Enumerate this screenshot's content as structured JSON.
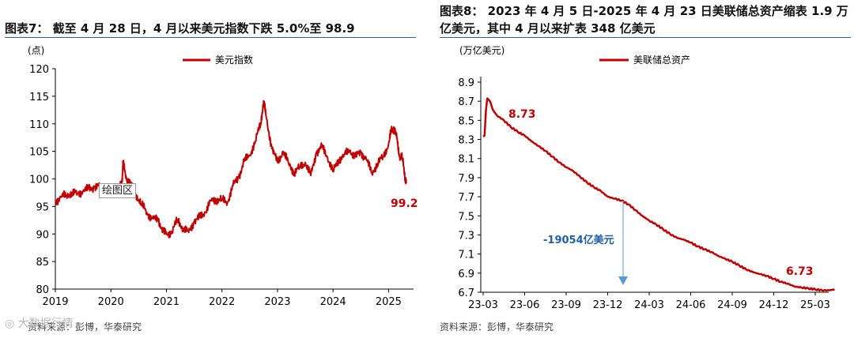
{
  "left_panel": {
    "title": "图表7： 截至 4 月 28 日，4 月以来美元指数下跌 5.0%至 98.9",
    "source": "资料来源：彭博，华泰研究",
    "tooltip": "绘图区",
    "watermark": "◎ 大数据行情"
  },
  "right_panel": {
    "title": "图表8： 2023 年 4 月 5 日-2025 年 4 月 23 日美联储总资产缩表 1.9 万亿美元，其中 4 月以来扩表 348 亿美元",
    "source": "资料来源：彭博，华泰研究"
  },
  "colors": {
    "series": "#c00000",
    "annotation": "#5b9bd5",
    "annotation_text": "#1f5fa8",
    "rule": "#2f5f8f"
  },
  "chart_data": [
    {
      "type": "line",
      "title": "美元指数",
      "ylabel": "(点)",
      "legend": "美元指数",
      "legend_position": "top-center",
      "x_ticks": [
        "2019",
        "2020",
        "2021",
        "2022",
        "2023",
        "2024",
        "2025"
      ],
      "y_ticks": [
        "120",
        "115",
        "110",
        "105",
        "100",
        "95",
        "90",
        "85",
        "80"
      ],
      "xlim": [
        2019.0,
        2025.45
      ],
      "ylim": [
        80,
        120
      ],
      "end_label": "99.2",
      "series": [
        {
          "name": "美元指数",
          "x": [
            2019.0,
            2019.1,
            2019.2,
            2019.3,
            2019.4,
            2019.5,
            2019.6,
            2019.7,
            2019.8,
            2019.9,
            2020.0,
            2020.1,
            2020.15,
            2020.2,
            2020.22,
            2020.28,
            2020.35,
            2020.45,
            2020.55,
            2020.65,
            2020.75,
            2020.85,
            2020.95,
            2021.0,
            2021.1,
            2021.2,
            2021.3,
            2021.4,
            2021.5,
            2021.6,
            2021.7,
            2021.8,
            2021.9,
            2022.0,
            2022.1,
            2022.2,
            2022.3,
            2022.4,
            2022.5,
            2022.6,
            2022.7,
            2022.75,
            2022.8,
            2022.9,
            2023.0,
            2023.1,
            2023.2,
            2023.3,
            2023.4,
            2023.5,
            2023.6,
            2023.7,
            2023.8,
            2023.9,
            2024.0,
            2024.1,
            2024.2,
            2024.3,
            2024.4,
            2024.5,
            2024.6,
            2024.7,
            2024.8,
            2024.9,
            2025.0,
            2025.05,
            2025.1,
            2025.15,
            2025.2,
            2025.25,
            2025.3,
            2025.32
          ],
          "values": [
            95.8,
            96.8,
            97.0,
            97.5,
            97.3,
            97.8,
            98.2,
            98.5,
            98.6,
            97.6,
            96.8,
            97.8,
            98.5,
            99.5,
            102.8,
            100.0,
            99.4,
            97.2,
            95.5,
            93.8,
            92.8,
            92.5,
            90.5,
            89.9,
            90.5,
            92.6,
            91.0,
            90.3,
            92.3,
            93.0,
            94.0,
            96.0,
            96.3,
            96.2,
            95.8,
            98.8,
            100.3,
            103.2,
            104.3,
            106.8,
            110.2,
            114.2,
            111.0,
            105.5,
            103.0,
            105.0,
            102.8,
            101.2,
            102.1,
            103.0,
            100.6,
            104.8,
            105.8,
            104.0,
            101.3,
            103.5,
            104.3,
            105.2,
            104.0,
            104.8,
            103.6,
            101.0,
            102.8,
            104.0,
            106.3,
            108.8,
            109.2,
            107.3,
            104.0,
            103.8,
            100.2,
            99.2
          ]
        }
      ]
    },
    {
      "type": "line",
      "title": "美联储总资产",
      "ylabel": "(万亿美元)",
      "legend": "美联储总资产",
      "legend_position": "top-center",
      "x_ticks": [
        "23-03",
        "23-06",
        "23-09",
        "23-12",
        "24-03",
        "24-06",
        "24-09",
        "24-12",
        "25-03"
      ],
      "y_ticks": [
        "8.9",
        "8.7",
        "8.5",
        "8.3",
        "8.1",
        "7.9",
        "7.7",
        "7.5",
        "7.3",
        "7.1",
        "6.9",
        "6.7"
      ],
      "ylim": [
        6.7,
        8.9
      ],
      "peak_label": "8.73",
      "end_label": "6.73",
      "annotation": "-19054亿美元",
      "series": [
        {
          "name": "美联储总资产",
          "x": [
            0.0,
            0.1,
            0.2,
            0.3,
            0.5,
            0.7,
            1.0,
            1.5,
            2.0,
            2.5,
            3.0,
            3.5,
            4.0,
            4.5,
            5.0,
            5.5,
            6.0,
            6.5,
            7.0,
            7.5,
            8.0,
            8.5,
            9.0,
            9.5,
            10.0,
            10.5,
            11.0,
            11.5,
            12.0,
            12.5,
            13.0,
            13.5,
            14.0,
            14.5,
            15.0,
            15.5,
            16.0,
            16.5,
            17.0,
            17.5,
            18.0,
            18.5,
            19.0,
            19.5,
            20.0,
            20.5,
            21.0,
            21.5,
            22.0,
            22.5,
            23.0,
            23.5,
            24.0,
            24.5,
            25.0,
            25.4
          ],
          "values": [
            8.33,
            8.34,
            8.6,
            8.73,
            8.7,
            8.61,
            8.55,
            8.5,
            8.43,
            8.38,
            8.34,
            8.28,
            8.23,
            8.18,
            8.12,
            8.06,
            8.01,
            7.97,
            7.91,
            7.85,
            7.8,
            7.76,
            7.7,
            7.68,
            7.66,
            7.62,
            7.56,
            7.5,
            7.45,
            7.41,
            7.36,
            7.31,
            7.27,
            7.25,
            7.22,
            7.18,
            7.15,
            7.12,
            7.08,
            7.05,
            7.02,
            6.98,
            6.94,
            6.91,
            6.89,
            6.87,
            6.84,
            6.81,
            6.79,
            6.76,
            6.75,
            6.74,
            6.73,
            6.72,
            6.72,
            6.73
          ]
        }
      ]
    }
  ]
}
